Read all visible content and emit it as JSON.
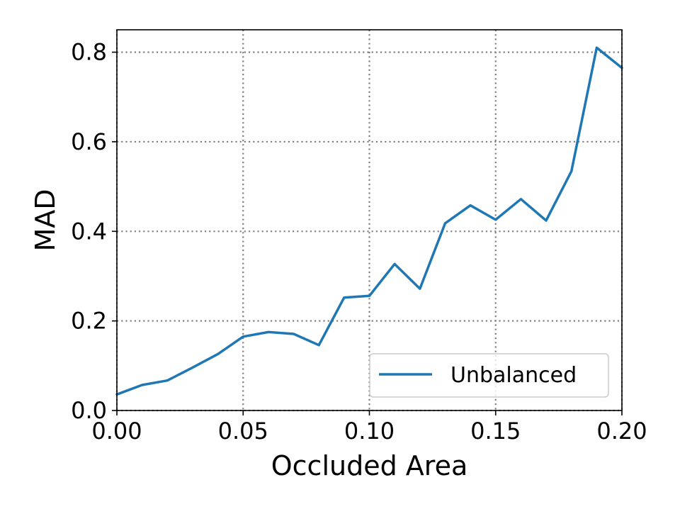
{
  "chart_data": {
    "type": "line",
    "title": "",
    "xlabel": "Occluded Area",
    "ylabel": "MAD",
    "xlim": [
      0.0,
      0.2
    ],
    "ylim": [
      0.0,
      0.85
    ],
    "x_ticks": [
      0.0,
      0.05,
      0.1,
      0.15,
      0.2
    ],
    "x_tick_labels": [
      "0.00",
      "0.05",
      "0.10",
      "0.15",
      "0.20"
    ],
    "y_ticks": [
      0.0,
      0.2,
      0.4,
      0.6,
      0.8
    ],
    "y_tick_labels": [
      "0.0",
      "0.2",
      "0.4",
      "0.6",
      "0.8"
    ],
    "grid": true,
    "grid_style": "dotted",
    "legend_position": "lower-right",
    "x": [
      0.0,
      0.01,
      0.02,
      0.03,
      0.04,
      0.05,
      0.06,
      0.07,
      0.08,
      0.09,
      0.1,
      0.11,
      0.12,
      0.13,
      0.14,
      0.15,
      0.16,
      0.17,
      0.18,
      0.19,
      0.2
    ],
    "series": [
      {
        "name": "Unbalanced",
        "color": "#1f77b4",
        "values": [
          0.036,
          0.057,
          0.067,
          0.096,
          0.126,
          0.165,
          0.175,
          0.171,
          0.146,
          0.252,
          0.256,
          0.327,
          0.272,
          0.418,
          0.458,
          0.426,
          0.472,
          0.424,
          0.534,
          0.81,
          0.765
        ]
      }
    ]
  }
}
